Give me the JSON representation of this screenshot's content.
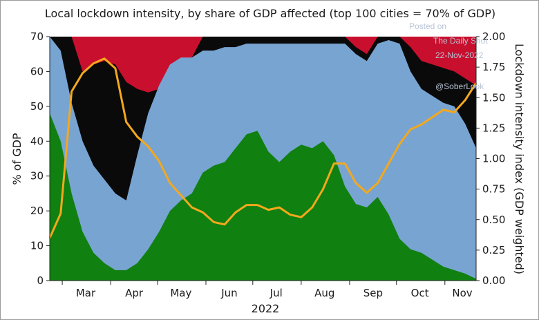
{
  "chart_data": {
    "type": "area",
    "title": "Local lockdown intensity, by share of GDP affected (top 100 cities = 70% of GDP)",
    "xlabel": "2022",
    "ylabel": "% of GDP",
    "ylabel_right": "Lockdown intensity index (GDP weighted)",
    "ylim": [
      0,
      70
    ],
    "ylim_right": [
      0,
      2.0
    ],
    "yticks": [
      "0",
      "10",
      "20",
      "30",
      "40",
      "50",
      "60",
      "70"
    ],
    "yticks_right": [
      "0.00",
      "0.25",
      "0.50",
      "0.75",
      "1.00",
      "1.25",
      "1.50",
      "1.75",
      "2.00"
    ],
    "month_ticks": [
      "Mar",
      "Apr",
      "May",
      "Jun",
      "Jul",
      "Aug",
      "Sep",
      "Oct",
      "Nov"
    ],
    "grid": false,
    "legend": "none",
    "x_dates": [
      "2022-02-21",
      "2022-02-28",
      "2022-03-07",
      "2022-03-14",
      "2022-03-21",
      "2022-03-28",
      "2022-04-04",
      "2022-04-11",
      "2022-04-18",
      "2022-04-25",
      "2022-05-02",
      "2022-05-09",
      "2022-05-16",
      "2022-05-23",
      "2022-05-30",
      "2022-06-06",
      "2022-06-13",
      "2022-06-20",
      "2022-06-27",
      "2022-07-04",
      "2022-07-11",
      "2022-07-18",
      "2022-07-25",
      "2022-08-01",
      "2022-08-08",
      "2022-08-15",
      "2022-08-22",
      "2022-08-29",
      "2022-09-05",
      "2022-09-12",
      "2022-09-19",
      "2022-09-26",
      "2022-10-03",
      "2022-10-10",
      "2022-10-17",
      "2022-10-24",
      "2022-10-31",
      "2022-11-07",
      "2022-11-14",
      "2022-11-21"
    ],
    "stack_series": [
      {
        "color": "#108010",
        "values": [
          48,
          40,
          25,
          14,
          8,
          5,
          3,
          3,
          5,
          9,
          14,
          20,
          23,
          25,
          31,
          33,
          34,
          38,
          42,
          43,
          37,
          34,
          37,
          39,
          38,
          40,
          36,
          27,
          22,
          21,
          24,
          19,
          12,
          9,
          8,
          6,
          4,
          3,
          2,
          0.5
        ]
      },
      {
        "color": "#78a4d2",
        "values": [
          70,
          66,
          51,
          40,
          33,
          29,
          25,
          23,
          36,
          48,
          56,
          62,
          64,
          64,
          66,
          66,
          67,
          67,
          68,
          68,
          68,
          68,
          68,
          68,
          68,
          68,
          68,
          68,
          65,
          63,
          68,
          69,
          68,
          60,
          55,
          53,
          51,
          50,
          45,
          38
        ]
      },
      {
        "color": "#0a0a0a",
        "values": [
          70,
          70,
          70,
          60,
          62,
          63,
          62,
          57,
          55,
          54,
          55,
          57,
          61,
          64,
          70,
          70,
          70,
          70,
          70,
          70,
          70,
          70,
          70,
          70,
          70,
          70,
          70,
          70,
          67,
          65,
          70,
          70,
          70,
          67,
          63,
          62,
          61,
          60,
          58,
          56
        ]
      },
      {
        "color": "#c8102e",
        "values": [
          70,
          70,
          70,
          70,
          70,
          70,
          70,
          70,
          70,
          70,
          70,
          70,
          70,
          70,
          70,
          70,
          70,
          70,
          70,
          70,
          70,
          70,
          70,
          70,
          70,
          70,
          70,
          70,
          70,
          70,
          70,
          70,
          70,
          70,
          70,
          70,
          70,
          70,
          70,
          70
        ]
      }
    ],
    "line_series": {
      "color": "#f4a81c",
      "axis": "right",
      "values": [
        0.35,
        0.55,
        1.55,
        1.7,
        1.78,
        1.82,
        1.74,
        1.3,
        1.18,
        1.1,
        0.98,
        0.8,
        0.7,
        0.6,
        0.56,
        0.48,
        0.46,
        0.56,
        0.62,
        0.62,
        0.58,
        0.6,
        0.54,
        0.52,
        0.6,
        0.75,
        0.96,
        0.96,
        0.8,
        0.72,
        0.8,
        0.96,
        1.12,
        1.24,
        1.28,
        1.34,
        1.4,
        1.38,
        1.48,
        1.62
      ]
    }
  },
  "watermark": {
    "line1": "Posted on",
    "line2": "The Daily Shot",
    "line3": "22-Nov-2022",
    "line4": "@SoberLook"
  }
}
